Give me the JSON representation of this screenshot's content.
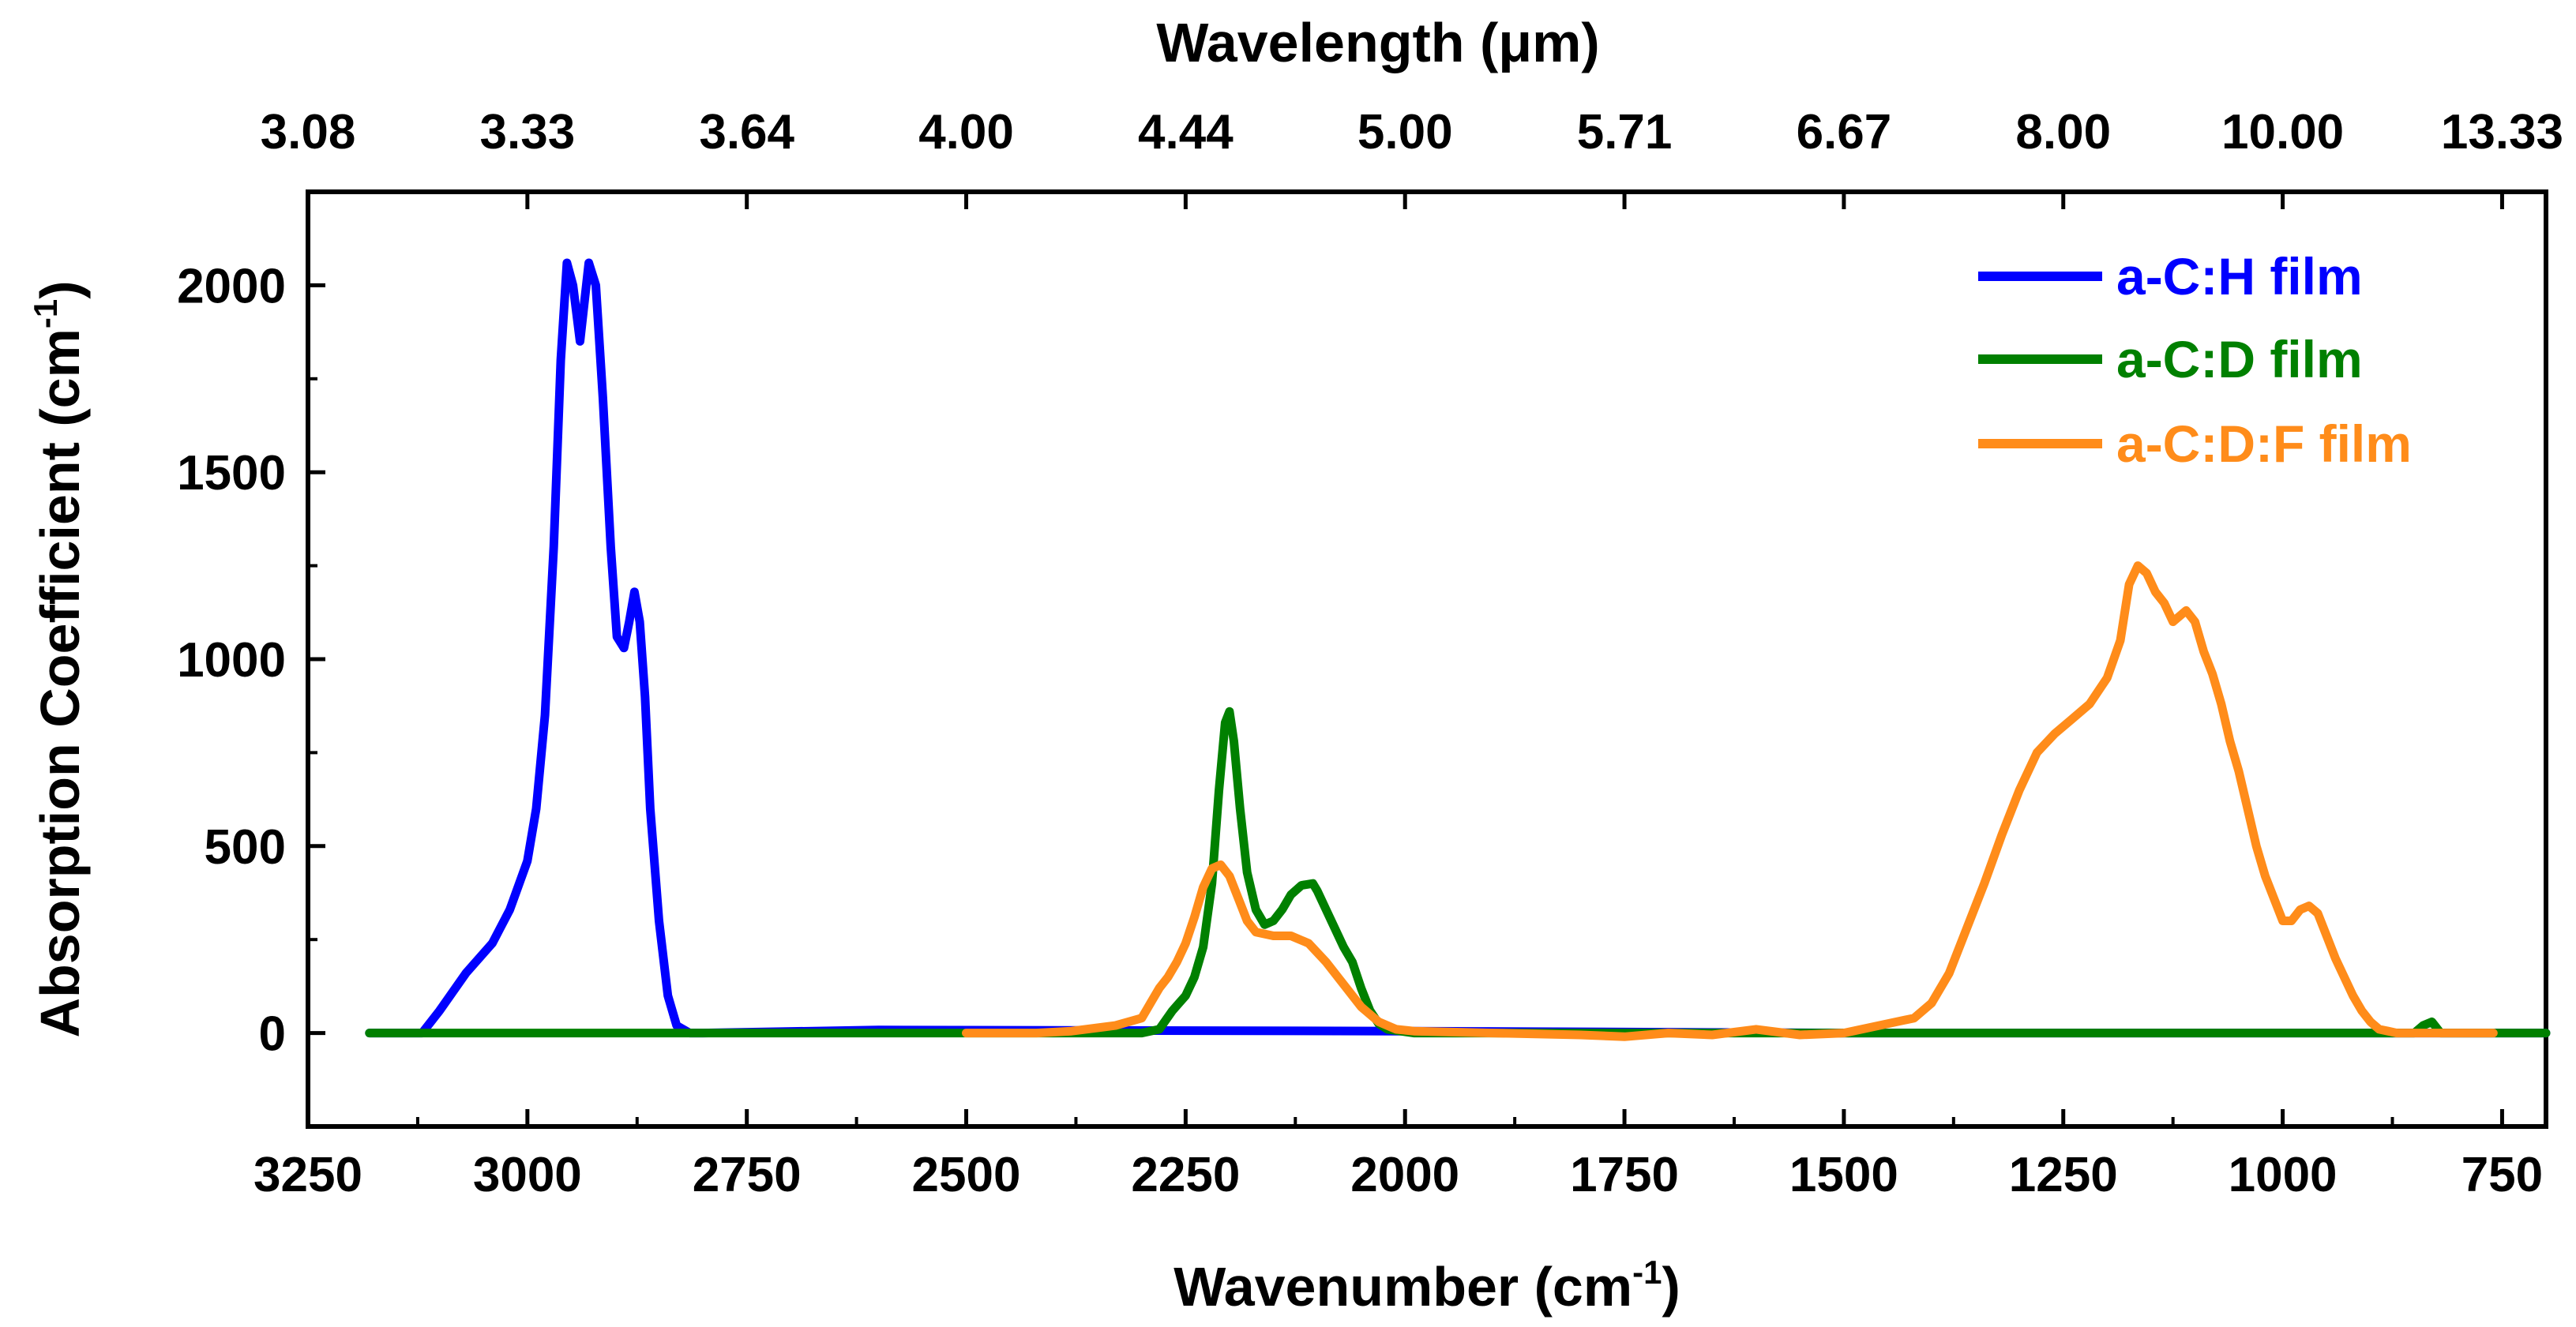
{
  "chart_data": {
    "type": "line",
    "title": "",
    "xlabel": "Wavenumber (cm",
    "xlabel_sup": "-1",
    "xlabel_close": ")",
    "ylabel": "Absorption Coefficient (cm",
    "ylabel_sup": "-1",
    "ylabel_close": ")",
    "top_xlabel": "Wavelength (μm)",
    "xlim": [
      3250,
      700
    ],
    "ylim": [
      -250,
      2250
    ],
    "xticks": [
      3250,
      3000,
      2750,
      2500,
      2250,
      2000,
      1750,
      1500,
      1250,
      1000,
      750
    ],
    "xtick_labels": [
      "3250",
      "3000",
      "2750",
      "2500",
      "2250",
      "2000",
      "1750",
      "1500",
      "1250",
      "1000",
      "750"
    ],
    "yticks": [
      0,
      500,
      1000,
      1500,
      2000
    ],
    "ytick_labels": [
      "0",
      "500",
      "1000",
      "1500",
      "2000"
    ],
    "top_ticks": [
      {
        "wavenumber": 3250,
        "label": "3.08"
      },
      {
        "wavenumber": 3000,
        "label": "3.33"
      },
      {
        "wavenumber": 2750,
        "label": "3.64"
      },
      {
        "wavenumber": 2500,
        "label": "4.00"
      },
      {
        "wavenumber": 2250,
        "label": "4.44"
      },
      {
        "wavenumber": 2000,
        "label": "5.00"
      },
      {
        "wavenumber": 1750,
        "label": "5.71"
      },
      {
        "wavenumber": 1500,
        "label": "6.67"
      },
      {
        "wavenumber": 1250,
        "label": "8.00"
      },
      {
        "wavenumber": 1000,
        "label": "10.00"
      },
      {
        "wavenumber": 750,
        "label": "13.33"
      }
    ],
    "legend_position": "top-right",
    "grid": false,
    "series": [
      {
        "name": "a-C:H film",
        "color": "#0000ff",
        "x": [
          3180,
          3120,
          3100,
          3070,
          3040,
          3020,
          3000,
          2990,
          2980,
          2970,
          2962,
          2955,
          2948,
          2940,
          2930,
          2922,
          2914,
          2905,
          2898,
          2890,
          2884,
          2878,
          2872,
          2866,
          2860,
          2850,
          2840,
          2830,
          2815,
          2800,
          2600,
          2000,
          1500,
          700
        ],
        "y": [
          0,
          0,
          60,
          160,
          240,
          330,
          460,
          600,
          850,
          1300,
          1800,
          2060,
          2000,
          1850,
          2060,
          2000,
          1700,
          1300,
          1060,
          1030,
          1100,
          1180,
          1100,
          900,
          600,
          300,
          100,
          20,
          0,
          0,
          8,
          5,
          0,
          0
        ]
      },
      {
        "name": "a-C:D film",
        "color": "#008000",
        "x": [
          3180,
          2300,
          2280,
          2265,
          2250,
          2240,
          2230,
          2220,
          2212,
          2205,
          2200,
          2195,
          2188,
          2180,
          2170,
          2160,
          2150,
          2140,
          2130,
          2118,
          2105,
          2100,
          2090,
          2080,
          2070,
          2060,
          2050,
          2040,
          2030,
          2020,
          2005,
          1990,
          1500,
          850,
          840,
          830,
          820,
          700
        ],
        "y": [
          0,
          0,
          10,
          60,
          100,
          150,
          230,
          400,
          650,
          830,
          860,
          780,
          600,
          430,
          330,
          290,
          300,
          330,
          370,
          395,
          400,
          380,
          330,
          280,
          230,
          190,
          120,
          60,
          25,
          10,
          5,
          0,
          0,
          0,
          20,
          30,
          0,
          0
        ]
      },
      {
        "name": "a-C:D:F film",
        "color": "#ff8c1a",
        "x": [
          2500,
          2420,
          2380,
          2330,
          2300,
          2290,
          2280,
          2270,
          2260,
          2250,
          2240,
          2230,
          2220,
          2210,
          2200,
          2190,
          2180,
          2170,
          2160,
          2150,
          2130,
          2110,
          2090,
          2070,
          2050,
          2030,
          2010,
          1990,
          1900,
          1800,
          1750,
          1700,
          1650,
          1600,
          1550,
          1500,
          1460,
          1440,
          1420,
          1400,
          1380,
          1360,
          1340,
          1320,
          1300,
          1280,
          1260,
          1240,
          1220,
          1200,
          1185,
          1175,
          1165,
          1155,
          1145,
          1135,
          1125,
          1110,
          1100,
          1090,
          1080,
          1070,
          1060,
          1050,
          1040,
          1030,
          1020,
          1010,
          1000,
          990,
          980,
          970,
          960,
          950,
          940,
          930,
          920,
          910,
          900,
          890,
          880,
          870,
          850,
          820,
          800,
          780,
          760
        ],
        "y": [
          0,
          0,
          5,
          20,
          40,
          80,
          120,
          150,
          190,
          240,
          310,
          390,
          440,
          450,
          420,
          360,
          300,
          270,
          265,
          260,
          260,
          240,
          190,
          130,
          70,
          30,
          10,
          5,
          0,
          -5,
          -10,
          0,
          -5,
          10,
          -5,
          0,
          20,
          30,
          40,
          80,
          160,
          280,
          400,
          530,
          650,
          750,
          800,
          840,
          880,
          950,
          1050,
          1200,
          1250,
          1230,
          1180,
          1150,
          1100,
          1130,
          1100,
          1020,
          960,
          880,
          780,
          700,
          600,
          500,
          420,
          360,
          300,
          300,
          330,
          340,
          320,
          260,
          200,
          150,
          100,
          60,
          30,
          10,
          5,
          0,
          0,
          0,
          0,
          0,
          0
        ]
      }
    ]
  }
}
